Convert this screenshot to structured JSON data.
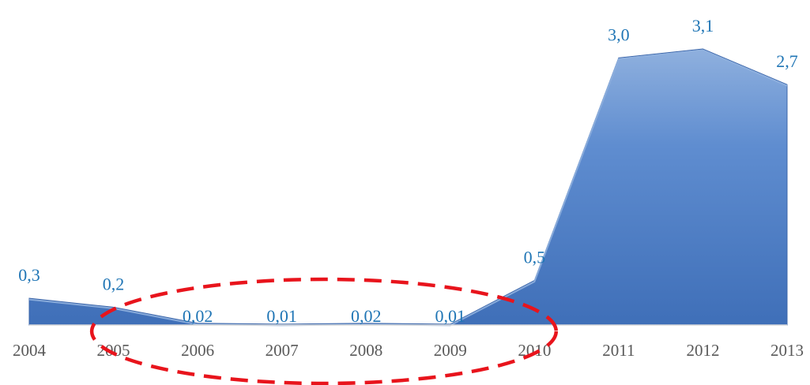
{
  "chart_data": {
    "type": "area",
    "categories": [
      "2004",
      "2005",
      "2006",
      "2007",
      "2008",
      "2009",
      "2010",
      "2011",
      "2012",
      "2013"
    ],
    "values": [
      0.3,
      0.2,
      0.02,
      0.01,
      0.02,
      0.01,
      0.5,
      3.0,
      3.1,
      2.7
    ],
    "data_labels": [
      "0,3",
      "0,2",
      "0,02",
      "0,01",
      "0,02",
      "0,01",
      "0,5",
      "3,0",
      "3,1",
      "2,7"
    ],
    "ylim": [
      0,
      3.1
    ],
    "grid": false,
    "legend": "none",
    "colors": {
      "area_fill": "#4f7fc4",
      "area_highlight": "#8fb0de",
      "data_label": "#1f75b5",
      "axis": "#d9d9d9",
      "tick_label": "#595959",
      "annotation": "#e8141c"
    },
    "annotation": {
      "shape": "dashed-ellipse",
      "highlighted_categories": [
        "2006",
        "2007",
        "2008",
        "2009"
      ]
    }
  }
}
